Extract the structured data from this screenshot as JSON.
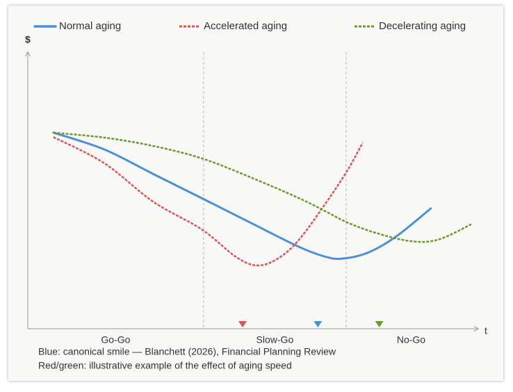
{
  "chart_data": {
    "type": "line",
    "x_label": "t",
    "y_label": "$",
    "xlim": [
      0,
      100
    ],
    "ylim": [
      0,
      100
    ],
    "phases": [
      "Go-Go",
      "Slow-Go",
      "No-Go"
    ],
    "phase_boundaries": [
      39.2,
      71
    ],
    "series": [
      {
        "name": "Normal aging",
        "color": "#4a90d9",
        "dashed": false,
        "x": [
          5.7,
          17.1,
          27.9,
          38.8,
          49.6,
          60.5,
          66.7,
          70.5,
          76,
          82.2,
          89.9
        ],
        "values": [
          70.9,
          64.8,
          56,
          47.2,
          38.4,
          29.6,
          25.9,
          25.4,
          27.6,
          33.4,
          43.5
        ]
      },
      {
        "name": "Accelerated aging",
        "color": "#e05252",
        "dashed": true,
        "x": [
          5.7,
          17.1,
          27.9,
          38.8,
          46.5,
          51.2,
          55.8,
          60.5,
          66.7,
          71.3,
          74.7
        ],
        "values": [
          69.3,
          59.8,
          46,
          35.9,
          25.9,
          22.9,
          25.4,
          32.2,
          46,
          57.3,
          67.3
        ]
      },
      {
        "name": "Decelerating aging",
        "color": "#6a9a2a",
        "dashed": true,
        "x": [
          5.7,
          17.1,
          27.9,
          38.8,
          49.6,
          60.5,
          66.7,
          71.3,
          77.5,
          85.3,
          91.5,
          99.2
        ],
        "values": [
          70.9,
          69.1,
          66.1,
          61.6,
          54.8,
          47.2,
          42.2,
          38.4,
          34.7,
          31.7,
          32.2,
          38
        ]
      }
    ],
    "markers": [
      {
        "color": "#e05252",
        "x": 47.9
      },
      {
        "color": "#4a90d9",
        "x": 64.7
      },
      {
        "color": "#6a9a2a",
        "x": 78.4
      }
    ],
    "captions": [
      "Blue: canonical smile — Blanchett (2026), Financial Planning Review",
      "Red/green: illustrative example of the effect of aging speed"
    ]
  }
}
